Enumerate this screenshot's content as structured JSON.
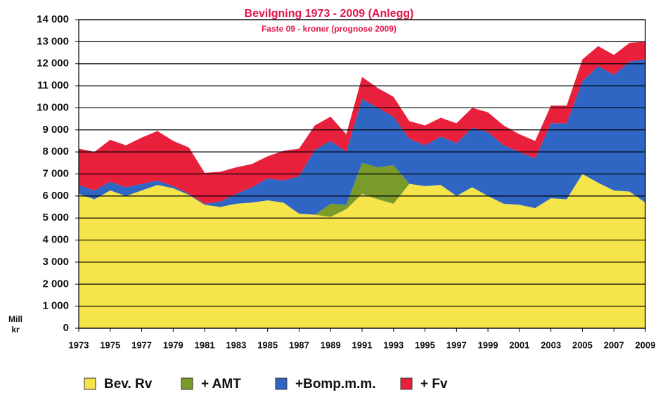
{
  "chart_data": {
    "type": "stacked_area",
    "title": "Bevilgning 1973 - 2009 (Anlegg)",
    "subtitle": "Faste 09 - kroner (prognose 2009)",
    "y_label": [
      "Mill",
      "kr"
    ],
    "x": [
      1973,
      1974,
      1975,
      1976,
      1977,
      1978,
      1979,
      1980,
      1981,
      1982,
      1983,
      1984,
      1985,
      1986,
      1987,
      1988,
      1989,
      1990,
      1991,
      1992,
      1993,
      1994,
      1995,
      1996,
      1997,
      1998,
      1999,
      2000,
      2001,
      2002,
      2003,
      2004,
      2005,
      2006,
      2007,
      2008,
      2009
    ],
    "xlim": [
      1973,
      2009
    ],
    "xticks": [
      1973,
      1975,
      1977,
      1979,
      1981,
      1983,
      1985,
      1987,
      1989,
      1991,
      1993,
      1995,
      1997,
      1999,
      2001,
      2003,
      2005,
      2007,
      2009
    ],
    "ylim": [
      0,
      14000
    ],
    "yticks": [
      0,
      {
        "value": 1000,
        "label": "1 000"
      },
      {
        "value": 2000,
        "label": "2 000"
      },
      {
        "value": 3000,
        "label": "3 000"
      },
      {
        "value": 4000,
        "label": "4 000"
      },
      {
        "value": 5000,
        "label": "5 000"
      },
      {
        "value": 6000,
        "label": "6 000"
      },
      {
        "value": 7000,
        "label": "7 000"
      },
      {
        "value": 8000,
        "label": "8 000"
      },
      {
        "value": 9000,
        "label": "9 000"
      },
      {
        "value": 10000,
        "label": "10 000"
      },
      {
        "value": 11000,
        "label": "11 000"
      },
      {
        "value": 12000,
        "label": "12 000"
      },
      {
        "value": 13000,
        "label": "13 000"
      },
      {
        "value": 14000,
        "label": "14 000"
      }
    ],
    "grid": true,
    "legend": "bottom",
    "series": [
      {
        "name": "Bev. Rv",
        "color": "#f5e44a",
        "values": [
          6100,
          5850,
          6250,
          6000,
          6250,
          6500,
          6350,
          6050,
          5600,
          5500,
          5650,
          5700,
          5800,
          5700,
          5200,
          5150,
          5050,
          5400,
          6100,
          5850,
          5650,
          6550,
          6450,
          6500,
          6000,
          6400,
          6000,
          5650,
          5600,
          5450,
          5900,
          5850,
          7000,
          6600,
          6250,
          6200,
          5700
        ]
      },
      {
        "name": "+ AMT",
        "color": "#7a9a2a",
        "values": [
          0,
          0,
          0,
          0,
          0,
          0,
          0,
          0,
          0,
          0,
          0,
          0,
          0,
          0,
          0,
          0,
          600,
          200,
          1400,
          1450,
          1750,
          0,
          0,
          0,
          0,
          0,
          0,
          0,
          0,
          0,
          0,
          0,
          0,
          0,
          0,
          0,
          0
        ]
      },
      {
        "name": "+Bomp.m.m.",
        "color": "#2f66c4",
        "values": [
          400,
          400,
          400,
          400,
          300,
          200,
          100,
          50,
          50,
          250,
          450,
          700,
          1000,
          1000,
          1700,
          2950,
          2850,
          2400,
          2900,
          2700,
          2200,
          2050,
          1850,
          2200,
          2400,
          2700,
          2900,
          2650,
          2400,
          2250,
          3400,
          3450,
          4200,
          5300,
          5250,
          5900,
          6500
        ]
      },
      {
        "name": "+ Fv",
        "color": "#e8203c",
        "values": [
          1650,
          1750,
          1900,
          1900,
          2100,
          2250,
          2050,
          2100,
          1400,
          1350,
          1200,
          1050,
          1000,
          1350,
          1250,
          1100,
          1100,
          800,
          1000,
          900,
          900,
          800,
          900,
          850,
          900,
          900,
          900,
          900,
          800,
          800,
          800,
          800,
          1000,
          900,
          900,
          850,
          800
        ]
      }
    ]
  }
}
